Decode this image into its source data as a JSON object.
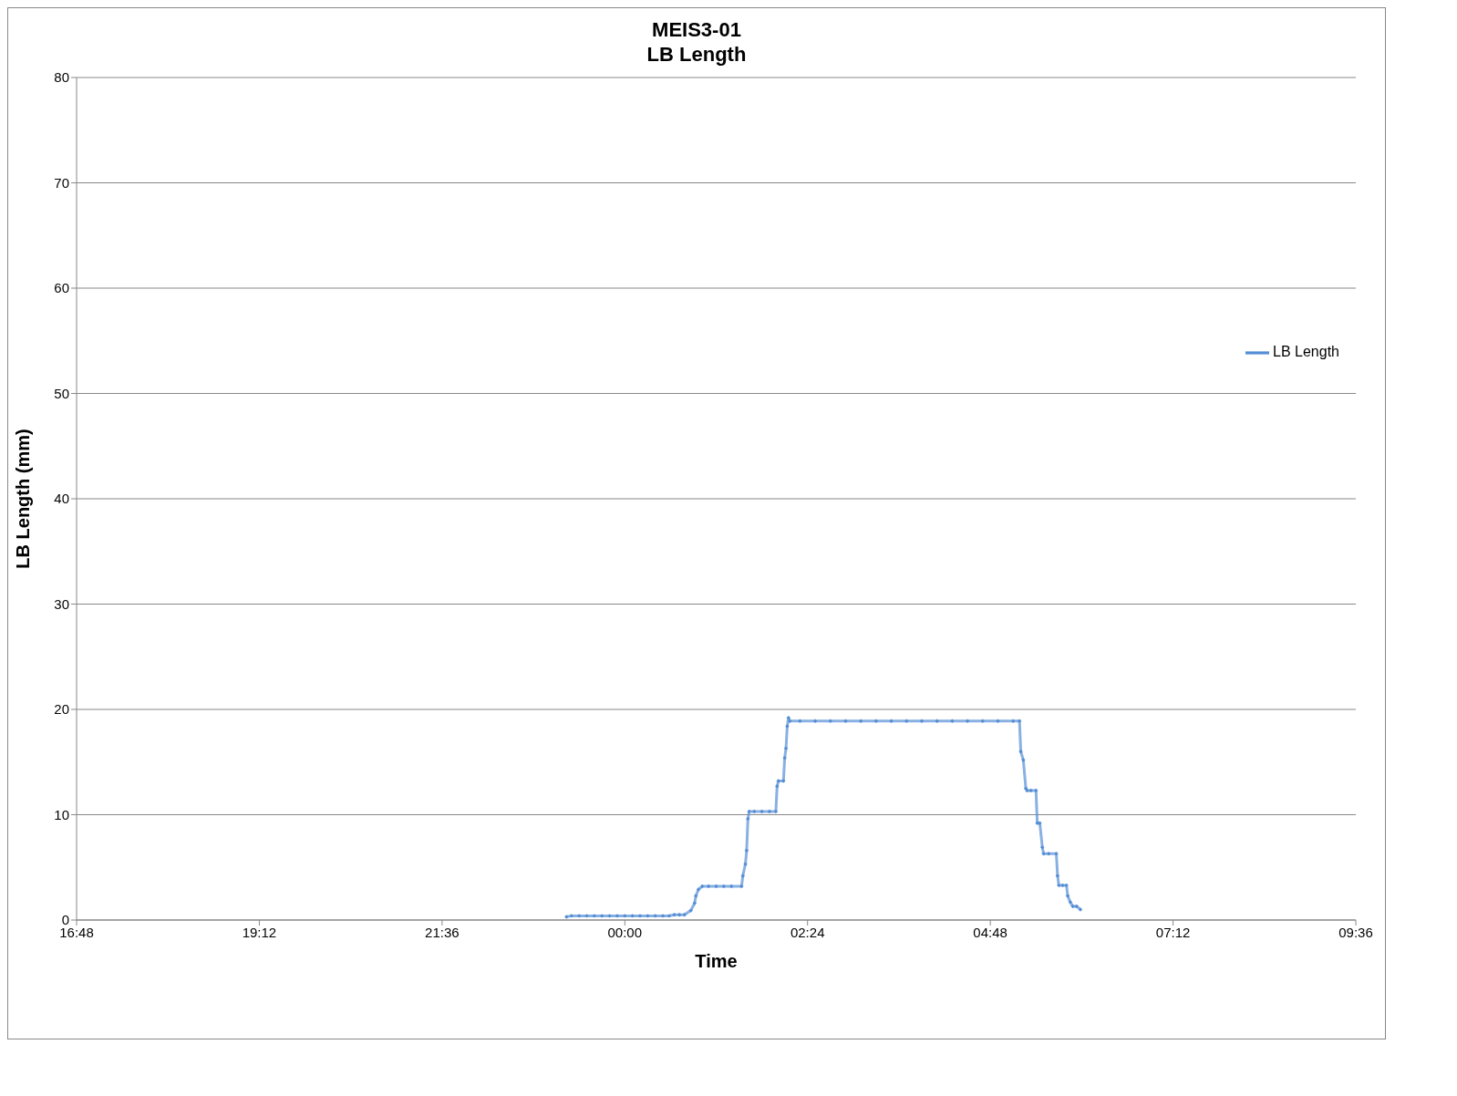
{
  "chart_data": {
    "type": "line",
    "title": "MEIS3-01",
    "subtitle": "LB Length",
    "xlabel": "Time",
    "ylabel": "LB Length (mm)",
    "xlim": [
      "--01-01T16:48",
      "--01-02T09:36"
    ],
    "xticks": [
      {
        "value": "--01-01T16:48",
        "label": "16:48"
      },
      {
        "value": "--01-01T19:12",
        "label": "19:12"
      },
      {
        "value": "--01-01T21:36",
        "label": "21:36"
      },
      {
        "value": "--01-02T00:00",
        "label": "00:00"
      },
      {
        "value": "--01-02T02:24",
        "label": "02:24"
      },
      {
        "value": "--01-02T04:48",
        "label": "04:48"
      },
      {
        "value": "--01-02T07:12",
        "label": "07:12"
      },
      {
        "value": "--01-02T09:36",
        "label": "09:36"
      }
    ],
    "ylim": [
      0,
      80
    ],
    "yticks": [
      0,
      10,
      20,
      30,
      40,
      50,
      60,
      70,
      80
    ],
    "grid": "y",
    "legend": "right",
    "marker": "diamond",
    "line_style": "solid",
    "series": [
      {
        "name": "LB Length",
        "color": "#558ed5",
        "x": [
          "--01-01T23:14",
          "--01-01T23:18",
          "--01-01T23:24",
          "--01-01T23:30",
          "--01-01T23:36",
          "--01-01T23:42",
          "--01-01T23:48",
          "--01-01T23:54",
          "--01-02T00:00",
          "--01-02T00:06",
          "--01-02T00:12",
          "--01-02T00:18",
          "--01-02T00:24",
          "--01-02T00:30",
          "--01-02T00:35",
          "--01-02T00:39",
          "--01-02T00:43",
          "--01-02T00:47",
          "--01-02T00:52",
          "--01-02T00:55",
          "--01-02T00:56",
          "--01-02T00:58",
          "--01-02T01:01",
          "--01-02T01:06",
          "--01-02T01:12",
          "--01-02T01:18",
          "--01-02T01:24",
          "--01-02T01:32",
          "--01-02T01:33",
          "--01-02T01:35",
          "--01-02T01:36",
          "--01-02T01:37",
          "--01-02T01:38",
          "--01-02T01:42",
          "--01-02T01:48",
          "--01-02T01:54",
          "--01-02T01:59",
          "--01-02T02:00",
          "--01-02T02:01",
          "--01-02T02:05",
          "--01-02T02:06",
          "--01-02T02:07",
          "--01-02T02:08",
          "--01-02T02:09",
          "--01-02T02:10",
          "--01-02T02:18",
          "--01-02T02:30",
          "--01-02T02:42",
          "--01-02T02:54",
          "--01-02T03:06",
          "--01-02T03:18",
          "--01-02T03:30",
          "--01-02T03:42",
          "--01-02T03:54",
          "--01-02T04:06",
          "--01-02T04:18",
          "--01-02T04:30",
          "--01-02T04:42",
          "--01-02T04:54",
          "--01-02T05:06",
          "--01-02T05:11",
          "--01-02T05:12",
          "--01-02T05:14",
          "--01-02T05:16",
          "--01-02T05:17",
          "--01-02T05:20",
          "--01-02T05:24",
          "--01-02T05:25",
          "--01-02T05:27",
          "--01-02T05:29",
          "--01-02T05:30",
          "--01-02T05:34",
          "--01-02T05:40",
          "--01-02T05:41",
          "--01-02T05:42",
          "--01-02T05:45",
          "--01-02T05:48",
          "--01-02T05:49",
          "--01-02T05:51",
          "--01-02T05:53",
          "--01-02T05:56",
          "--01-02T05:59"
        ],
        "values": [
          0.3,
          0.4,
          0.4,
          0.4,
          0.4,
          0.4,
          0.4,
          0.4,
          0.4,
          0.4,
          0.4,
          0.4,
          0.4,
          0.4,
          0.4,
          0.5,
          0.5,
          0.5,
          0.9,
          1.6,
          2.3,
          2.9,
          3.2,
          3.2,
          3.2,
          3.2,
          3.2,
          3.2,
          4.2,
          5.3,
          6.6,
          9.6,
          10.3,
          10.3,
          10.3,
          10.3,
          10.3,
          12.7,
          13.2,
          13.2,
          15.4,
          16.3,
          18.4,
          19.2,
          18.9,
          18.9,
          18.9,
          18.9,
          18.9,
          18.9,
          18.9,
          18.9,
          18.9,
          18.9,
          18.9,
          18.9,
          18.9,
          18.9,
          18.9,
          18.9,
          18.9,
          16.0,
          15.2,
          12.5,
          12.3,
          12.3,
          12.3,
          9.2,
          9.2,
          6.9,
          6.3,
          6.3,
          6.3,
          4.2,
          3.3,
          3.3,
          3.3,
          2.3,
          1.7,
          1.3,
          1.3,
          1.0
        ]
      }
    ]
  }
}
